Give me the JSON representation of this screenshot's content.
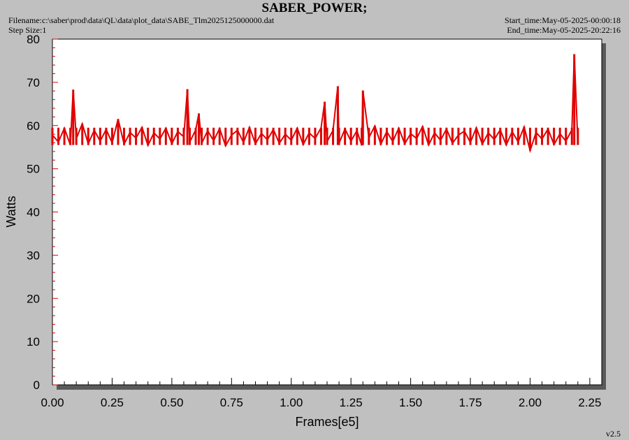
{
  "header": {
    "title": "SABER_POWER;",
    "filename": "Filename:c:\\saber\\prod\\data\\QL\\data\\plot_data\\SABE_Tlm2025125000000.dat",
    "step_size": "Step Size:1",
    "start_time": "Start_time:May-05-2025-00:00:18",
    "end_time": "End_time:May-05-2025-20:22:16"
  },
  "footer": {
    "version": "v2.5"
  },
  "colors": {
    "series": "#e00000",
    "background": "#c0c0c0",
    "plot_area": "#ffffff",
    "shadow": "#5a5a5a"
  },
  "chart_data": {
    "type": "line",
    "title": "SABER_POWER;",
    "xlabel": "Frames[e5]",
    "ylabel": "Watts",
    "xlim": [
      0,
      2.3
    ],
    "ylim": [
      0,
      80
    ],
    "xticks": [
      "0.00",
      "0.25",
      "0.50",
      "0.75",
      "1.00",
      "1.25",
      "1.50",
      "1.75",
      "2.00",
      "2.25"
    ],
    "yticks": [
      "0",
      "10",
      "20",
      "30",
      "40",
      "50",
      "60",
      "70",
      "80"
    ],
    "grid": false,
    "series": [
      {
        "x": [
          0.0,
          0.025,
          0.05,
          0.075,
          0.087,
          0.1,
          0.125,
          0.15,
          0.175,
          0.2,
          0.225,
          0.25,
          0.275,
          0.3,
          0.325,
          0.35,
          0.375,
          0.4,
          0.425,
          0.45,
          0.475,
          0.5,
          0.525,
          0.55,
          0.565,
          0.575,
          0.6,
          0.613,
          0.625,
          0.65,
          0.675,
          0.7,
          0.725,
          0.75,
          0.775,
          0.8,
          0.825,
          0.85,
          0.875,
          0.9,
          0.925,
          0.95,
          0.975,
          1.0,
          1.025,
          1.05,
          1.075,
          1.1,
          1.125,
          1.14,
          1.15,
          1.175,
          1.195,
          1.2,
          1.225,
          1.25,
          1.275,
          1.295,
          1.3,
          1.325,
          1.35,
          1.375,
          1.4,
          1.425,
          1.45,
          1.475,
          1.5,
          1.525,
          1.55,
          1.575,
          1.6,
          1.625,
          1.65,
          1.675,
          1.7,
          1.725,
          1.75,
          1.775,
          1.8,
          1.825,
          1.85,
          1.875,
          1.9,
          1.925,
          1.95,
          1.975,
          2.0,
          2.025,
          2.05,
          2.075,
          2.1,
          2.125,
          2.15,
          2.175,
          2.185,
          2.2
        ],
        "y": [
          57.8,
          56.2,
          59.4,
          55.5,
          68.3,
          57.0,
          60.4,
          55.8,
          58.9,
          56.4,
          59.1,
          56.0,
          61.5,
          55.7,
          58.4,
          57.1,
          59.6,
          55.4,
          58.3,
          56.9,
          59.4,
          55.8,
          58.6,
          57.4,
          68.4,
          56.2,
          59.0,
          62.8,
          55.9,
          58.8,
          56.5,
          59.3,
          55.3,
          57.8,
          58.9,
          56.1,
          59.6,
          55.8,
          58.2,
          56.7,
          59.1,
          55.9,
          58.0,
          56.6,
          59.4,
          55.6,
          58.3,
          57.0,
          59.5,
          65.5,
          56.3,
          58.9,
          69.1,
          55.9,
          59.2,
          56.4,
          58.8,
          55.4,
          68.1,
          57.2,
          59.9,
          55.7,
          58.6,
          56.3,
          59.4,
          55.8,
          58.1,
          57.0,
          59.8,
          55.5,
          58.3,
          56.6,
          59.2,
          55.9,
          57.8,
          58.7,
          56.1,
          59.5,
          55.7,
          58.3,
          56.8,
          59.0,
          55.5,
          58.6,
          56.2,
          59.7,
          54.2,
          58.4,
          56.9,
          59.2,
          55.6,
          58.1,
          56.4,
          59.0,
          76.5,
          55.8
        ]
      }
    ]
  }
}
